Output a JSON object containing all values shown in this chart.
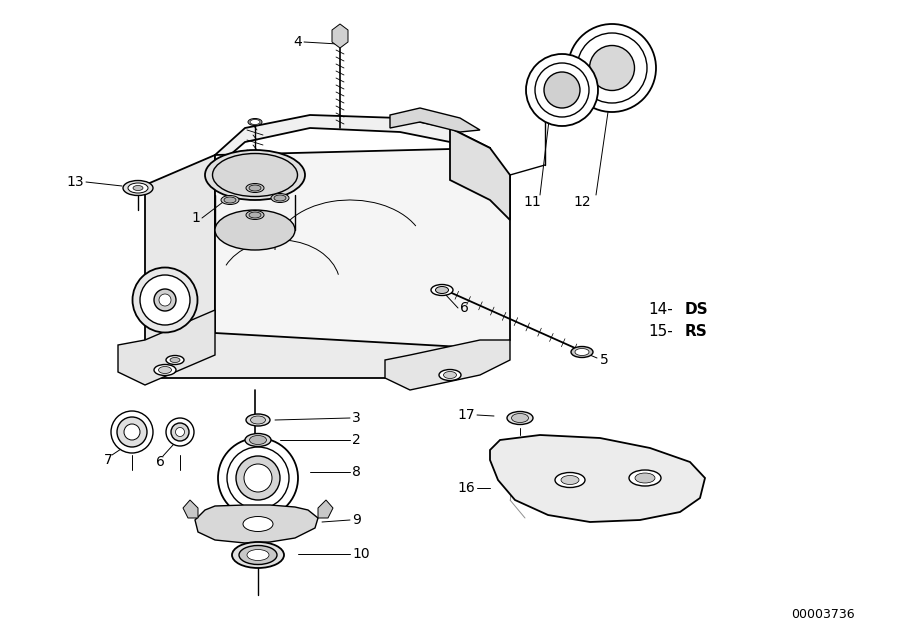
{
  "background_color": "#ffffff",
  "line_color": "#000000",
  "figure_width": 9.0,
  "figure_height": 6.35,
  "diagram_number": "00003736",
  "label_fontsize": 10,
  "anno_fontsize": 10.5,
  "parts": {
    "14_text": "14– DS",
    "15_text": "15– RS"
  }
}
